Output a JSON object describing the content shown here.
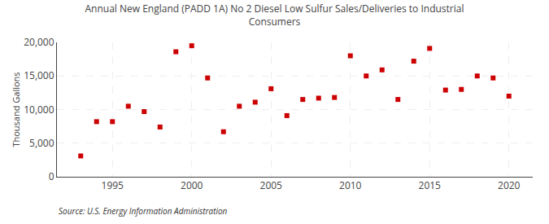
{
  "chart_data": {
    "type": "scatter",
    "title": "Annual New England (PADD 1A) No 2 Diesel Low Sulfur Sales/Deliveries to Industrial\nConsumers",
    "y_label": "Thousand Gallons",
    "annotations": [
      "Source: U.S. Energy Information Administration"
    ],
    "x": [
      1993,
      1994,
      1995,
      1996,
      1997,
      1998,
      1999,
      2000,
      2001,
      2002,
      2003,
      2004,
      2005,
      2006,
      2007,
      2008,
      2009,
      2010,
      2011,
      2012,
      2013,
      2014,
      2015,
      2016,
      2017,
      2018,
      2019,
      2020
    ],
    "values": [
      3100,
      8200,
      8200,
      10500,
      9700,
      7400,
      18600,
      19500,
      14700,
      6700,
      10500,
      11100,
      13100,
      9100,
      11500,
      11700,
      11800,
      18000,
      15000,
      15900,
      11500,
      17200,
      19100,
      12900,
      13000,
      15000,
      14700,
      12000
    ],
    "color": "#cc0000",
    "marker": "square",
    "xlim": [
      1991.5,
      2021.5
    ],
    "xticks": [
      1995,
      2000,
      2005,
      2010,
      2015,
      2020
    ],
    "ylim": [
      0,
      20000
    ],
    "yticks": [
      0,
      {
        "value": 5000,
        "label": "5,000"
      },
      {
        "value": 10000,
        "label": "10,000"
      },
      {
        "value": 15000,
        "label": "15,000"
      },
      {
        "value": 20000,
        "label": "20,000"
      }
    ],
    "grid": true
  }
}
